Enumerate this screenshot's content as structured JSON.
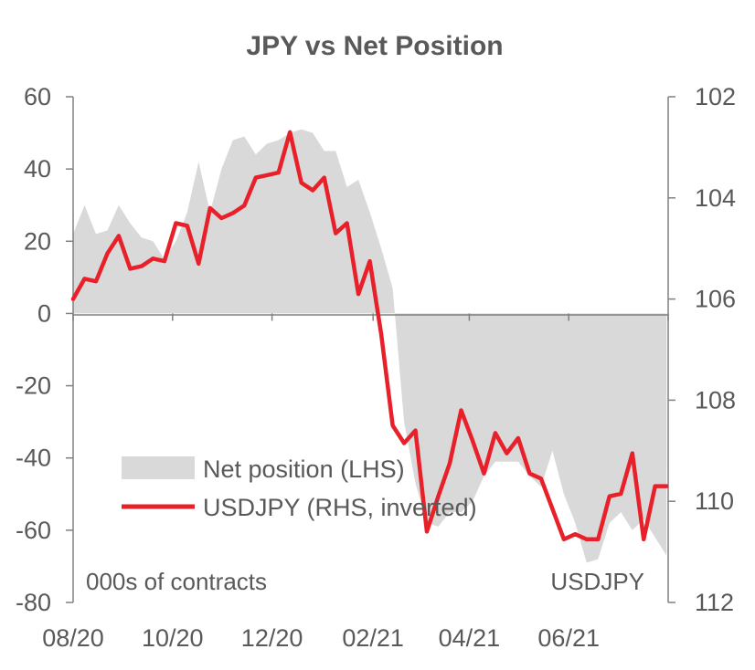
{
  "chart_data": {
    "type": "area+line",
    "title": "JPY vs Net Position",
    "left_axis": {
      "min": -80,
      "max": 60,
      "ticks": [
        "60",
        "40",
        "20",
        "0",
        "-20",
        "-40",
        "-60",
        "-80"
      ],
      "tick_values": [
        60,
        40,
        20,
        0,
        -20,
        -40,
        -60,
        -80
      ]
    },
    "right_axis": {
      "inverted": true,
      "min": 102,
      "max": 112,
      "ticks": [
        "102",
        "104",
        "106",
        "108",
        "110",
        "112"
      ],
      "tick_values": [
        102,
        104,
        106,
        108,
        110,
        112
      ]
    },
    "x_tick_labels": [
      "08/20",
      "10/20",
      "12/20",
      "02/21",
      "04/21",
      "06/21"
    ],
    "x_range": [
      "2020-08-01",
      "2021-08-01"
    ],
    "x_tick_dates": [
      "2020-08-01",
      "2020-10-01",
      "2020-12-01",
      "2021-02-01",
      "2021-04-01",
      "2021-06-01"
    ],
    "note_left": "000s of contracts",
    "note_right": "USDJPY",
    "legend": {
      "position": "bottom-left"
    },
    "series": [
      {
        "name": "Net position (LHS)",
        "kind": "area",
        "axis": "left",
        "color": "#d9d9d9",
        "points": [
          [
            "2020-08-01",
            22
          ],
          [
            "2020-08-08",
            30
          ],
          [
            "2020-08-15",
            22
          ],
          [
            "2020-08-22",
            23
          ],
          [
            "2020-08-29",
            30
          ],
          [
            "2020-09-05",
            25
          ],
          [
            "2020-09-12",
            21
          ],
          [
            "2020-09-19",
            20
          ],
          [
            "2020-09-26",
            15
          ],
          [
            "2020-10-03",
            20
          ],
          [
            "2020-10-10",
            28
          ],
          [
            "2020-10-17",
            42
          ],
          [
            "2020-10-24",
            28
          ],
          [
            "2020-10-31",
            40
          ],
          [
            "2020-11-07",
            48
          ],
          [
            "2020-11-14",
            49
          ],
          [
            "2020-11-21",
            44
          ],
          [
            "2020-11-28",
            47
          ],
          [
            "2020-12-05",
            48
          ],
          [
            "2020-12-12",
            50
          ],
          [
            "2020-12-19",
            51
          ],
          [
            "2020-12-26",
            50
          ],
          [
            "2021-01-02",
            45
          ],
          [
            "2021-01-09",
            45
          ],
          [
            "2021-01-16",
            35
          ],
          [
            "2021-01-23",
            37
          ],
          [
            "2021-01-30",
            28
          ],
          [
            "2021-02-06",
            18
          ],
          [
            "2021-02-13",
            7
          ],
          [
            "2021-02-20",
            -30
          ],
          [
            "2021-02-27",
            -47
          ],
          [
            "2021-03-06",
            -58
          ],
          [
            "2021-03-13",
            -59
          ],
          [
            "2021-03-20",
            -55
          ],
          [
            "2021-03-27",
            -55
          ],
          [
            "2021-04-03",
            -52
          ],
          [
            "2021-04-10",
            -45
          ],
          [
            "2021-04-17",
            -41
          ],
          [
            "2021-04-24",
            -41
          ],
          [
            "2021-05-01",
            -41
          ],
          [
            "2021-05-08",
            -45
          ],
          [
            "2021-05-15",
            -48
          ],
          [
            "2021-05-22",
            -38
          ],
          [
            "2021-05-29",
            -50
          ],
          [
            "2021-06-05",
            -58
          ],
          [
            "2021-06-12",
            -69
          ],
          [
            "2021-06-19",
            -68
          ],
          [
            "2021-06-26",
            -58
          ],
          [
            "2021-07-03",
            -55
          ],
          [
            "2021-07-10",
            -60
          ],
          [
            "2021-07-17",
            -57
          ],
          [
            "2021-07-24",
            -62
          ],
          [
            "2021-07-31",
            -67
          ]
        ]
      },
      {
        "name": "USDJPY (RHS, inverted)",
        "kind": "line",
        "axis": "right",
        "color": "#e8202a",
        "points": [
          [
            "2020-08-01",
            106.0
          ],
          [
            "2020-08-08",
            105.6
          ],
          [
            "2020-08-15",
            105.65
          ],
          [
            "2020-08-22",
            105.1
          ],
          [
            "2020-08-29",
            104.75
          ],
          [
            "2020-09-05",
            105.4
          ],
          [
            "2020-09-12",
            105.35
          ],
          [
            "2020-09-19",
            105.2
          ],
          [
            "2020-09-26",
            105.25
          ],
          [
            "2020-10-03",
            104.5
          ],
          [
            "2020-10-10",
            104.55
          ],
          [
            "2020-10-17",
            105.3
          ],
          [
            "2020-10-24",
            104.2
          ],
          [
            "2020-10-31",
            104.4
          ],
          [
            "2020-11-07",
            104.3
          ],
          [
            "2020-11-14",
            104.15
          ],
          [
            "2020-11-21",
            103.6
          ],
          [
            "2020-11-28",
            103.55
          ],
          [
            "2020-12-05",
            103.5
          ],
          [
            "2020-12-12",
            102.7
          ],
          [
            "2020-12-19",
            103.7
          ],
          [
            "2020-12-26",
            103.85
          ],
          [
            "2021-01-02",
            103.6
          ],
          [
            "2021-01-09",
            104.7
          ],
          [
            "2021-01-16",
            104.5
          ],
          [
            "2021-01-23",
            105.9
          ],
          [
            "2021-01-30",
            105.25
          ],
          [
            "2021-02-06",
            106.7
          ],
          [
            "2021-02-13",
            108.5
          ],
          [
            "2021-02-20",
            108.85
          ],
          [
            "2021-02-27",
            108.6
          ],
          [
            "2021-03-06",
            110.6
          ],
          [
            "2021-03-13",
            109.9
          ],
          [
            "2021-03-20",
            109.25
          ],
          [
            "2021-03-27",
            108.2
          ],
          [
            "2021-04-03",
            108.8
          ],
          [
            "2021-04-10",
            109.45
          ],
          [
            "2021-04-17",
            108.65
          ],
          [
            "2021-04-24",
            109.05
          ],
          [
            "2021-05-01",
            108.75
          ],
          [
            "2021-05-08",
            109.45
          ],
          [
            "2021-05-15",
            109.55
          ],
          [
            "2021-05-22",
            110.15
          ],
          [
            "2021-05-29",
            110.75
          ],
          [
            "2021-06-05",
            110.65
          ],
          [
            "2021-06-12",
            110.75
          ],
          [
            "2021-06-19",
            110.75
          ],
          [
            "2021-06-26",
            109.9
          ],
          [
            "2021-07-03",
            109.85
          ],
          [
            "2021-07-10",
            109.05
          ],
          [
            "2021-07-17",
            110.75
          ],
          [
            "2021-07-24",
            109.7
          ],
          [
            "2021-07-31",
            109.7
          ]
        ]
      }
    ]
  }
}
